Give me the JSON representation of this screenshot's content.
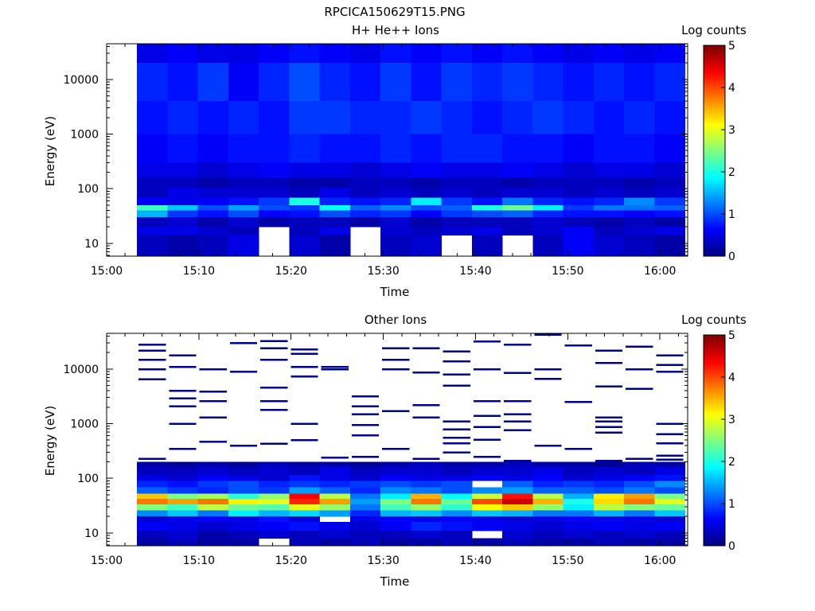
{
  "figure": {
    "title": "RPCICA150629T15.PNG"
  },
  "chart_data": [
    {
      "type": "heatmap",
      "title": "H+ He++ Ions",
      "xlabel": "Time",
      "ylabel": "Energy (eV)",
      "colorbar_label": "Log counts",
      "x_ticks": [
        "15:00",
        "15:10",
        "15:20",
        "15:30",
        "15:40",
        "15:50",
        "16:00"
      ],
      "x_range_minutes": [
        0,
        63
      ],
      "y_scale": "log",
      "y_range": [
        5.8,
        45000
      ],
      "y_ticks": [
        "10",
        "100",
        "1000",
        "10000"
      ],
      "colorbar_range": [
        0,
        5
      ],
      "colorbar_ticks": [
        "0",
        "1",
        "2",
        "3",
        "4",
        "5"
      ],
      "time_columns_minutes": [
        3.3,
        6.6,
        9.9,
        13.2,
        16.5,
        19.8,
        23.1,
        26.4,
        29.7,
        33.0,
        36.3,
        39.6,
        42.9,
        46.2,
        49.5,
        52.8,
        56.1,
        59.4,
        62.7
      ],
      "energy_bands": [
        {
          "energy_range": [
            20000,
            45000
          ],
          "log_counts": [
            0.5,
            0.6,
            0.5,
            0.5,
            0.6,
            0.7,
            0.6,
            0.5,
            0.7,
            0.6,
            0.7,
            0.6,
            0.7,
            0.6,
            0.5,
            0.6,
            0.5,
            0.6
          ]
        },
        {
          "energy_range": [
            4000,
            20000
          ],
          "log_counts": [
            0.8,
            0.7,
            0.9,
            0.6,
            0.8,
            1.0,
            0.8,
            0.7,
            0.9,
            0.7,
            0.9,
            0.8,
            0.9,
            0.8,
            0.7,
            0.8,
            0.7,
            0.8
          ]
        },
        {
          "energy_range": [
            1000,
            4000
          ],
          "log_counts": [
            0.7,
            0.8,
            0.7,
            0.8,
            0.7,
            0.9,
            0.9,
            0.8,
            0.8,
            0.9,
            0.8,
            0.7,
            0.8,
            0.9,
            0.8,
            0.7,
            0.8,
            0.7
          ]
        },
        {
          "energy_range": [
            300,
            1000
          ],
          "log_counts": [
            0.6,
            0.7,
            0.6,
            0.7,
            0.7,
            0.8,
            0.7,
            0.7,
            0.8,
            0.7,
            0.8,
            0.8,
            0.7,
            0.7,
            0.6,
            0.7,
            0.7,
            0.6
          ]
        },
        {
          "energy_range": [
            160,
            300
          ],
          "log_counts": [
            0.5,
            0.5,
            0.4,
            0.5,
            0.6,
            0.5,
            0.5,
            0.4,
            0.5,
            0.6,
            0.5,
            0.5,
            0.6,
            0.5,
            0.4,
            0.5,
            0.5,
            0.4
          ]
        },
        {
          "energy_range": [
            105,
            160
          ],
          "log_counts": [
            0.3,
            0.3,
            0.2,
            0.3,
            0.3,
            0.2,
            0.2,
            0.3,
            0.3,
            0.2,
            0.3,
            0.3,
            0.2,
            0.3,
            0.3,
            0.3,
            0.2,
            0.3
          ]
        },
        {
          "energy_range": [
            68,
            105
          ],
          "log_counts": [
            0.3,
            0.5,
            0.4,
            0.4,
            0.4,
            0.3,
            0.5,
            0.3,
            0.4,
            0.3,
            0.4,
            0.3,
            0.4,
            0.4,
            0.3,
            0.4,
            0.3,
            0.4
          ]
        },
        {
          "energy_range": [
            50,
            68
          ],
          "log_counts": [
            0.6,
            0.5,
            0.6,
            0.7,
            0.9,
            2.0,
            0.8,
            0.7,
            0.8,
            1.8,
            0.9,
            0.7,
            1.2,
            0.8,
            0.7,
            0.8,
            1.3,
            0.9
          ]
        },
        {
          "energy_range": [
            40,
            50
          ],
          "log_counts": [
            2.2,
            1.6,
            1.0,
            1.4,
            1.0,
            0.9,
            1.9,
            1.1,
            1.3,
            1.0,
            1.1,
            2.0,
            2.4,
            1.8,
            0.9,
            1.2,
            1.2,
            1.1
          ]
        },
        {
          "energy_range": [
            30,
            40
          ],
          "log_counts": [
            1.5,
            0.9,
            0.7,
            1.0,
            0.6,
            0.7,
            1.0,
            0.8,
            0.9,
            0.6,
            0.9,
            1.0,
            1.1,
            0.8,
            0.7,
            0.7,
            0.6,
            0.7
          ]
        },
        {
          "energy_range": [
            20,
            30
          ],
          "log_counts": [
            0.3,
            0.4,
            0.2,
            0.4,
            0.2,
            0.3,
            0.3,
            0.2,
            0.4,
            0.2,
            0.3,
            0.3,
            0.3,
            0.4,
            0.3,
            0.2,
            0.3,
            0.2
          ]
        },
        {
          "energy_range": [
            14,
            20
          ],
          "log_counts": [
            0.5,
            0.5,
            0.4,
            0.3,
            null,
            0.3,
            0.5,
            null,
            0.4,
            0.3,
            0.4,
            0.5,
            0.3,
            0.4,
            0.6,
            0.3,
            0.4,
            0.5
          ]
        },
        {
          "energy_range": [
            5.8,
            14
          ],
          "log_counts": [
            0.3,
            0.2,
            0.3,
            0.5,
            null,
            0.4,
            0.2,
            null,
            0.3,
            0.4,
            null,
            0.3,
            null,
            0.3,
            0.6,
            0.4,
            0.3,
            0.2
          ]
        }
      ]
    },
    {
      "type": "heatmap",
      "title": "Other Ions",
      "xlabel": "Time",
      "ylabel": "Energy (eV)",
      "colorbar_label": "Log counts",
      "x_ticks": [
        "15:00",
        "15:10",
        "15:20",
        "15:30",
        "15:40",
        "15:50",
        "16:00"
      ],
      "x_range_minutes": [
        0,
        63
      ],
      "y_scale": "log",
      "y_range": [
        5.8,
        45000
      ],
      "y_ticks": [
        "10",
        "100",
        "1000",
        "10000"
      ],
      "colorbar_range": [
        0,
        5
      ],
      "colorbar_ticks": [
        "0",
        "1",
        "2",
        "3",
        "4",
        "5"
      ],
      "time_columns_minutes": [
        3.3,
        6.6,
        9.9,
        13.2,
        16.5,
        19.8,
        23.1,
        26.4,
        29.7,
        33.0,
        36.3,
        39.6,
        42.9,
        46.2,
        49.5,
        52.8,
        56.1,
        59.4,
        62.7
      ],
      "energy_bands": [
        {
          "energy_range": [
            160,
            200
          ],
          "log_counts": [
            0.2,
            0.1,
            0.2,
            0.1,
            0.3,
            0.2,
            0.2,
            0.1,
            0.2,
            0.3,
            0.2,
            0.2,
            0.3,
            0.2,
            0.2,
            0.1,
            0.3,
            0.2
          ]
        },
        {
          "energy_range": [
            115,
            160
          ],
          "log_counts": [
            0.3,
            0.3,
            0.4,
            0.3,
            0.4,
            0.3,
            0.5,
            0.3,
            0.4,
            0.4,
            0.3,
            0.4,
            0.4,
            0.5,
            0.3,
            0.4,
            0.3,
            0.5
          ]
        },
        {
          "energy_range": [
            90,
            115
          ],
          "log_counts": [
            0.5,
            0.4,
            0.6,
            0.5,
            0.4,
            0.7,
            0.5,
            0.4,
            0.6,
            0.5,
            0.5,
            0.6,
            0.5,
            0.6,
            0.4,
            0.5,
            0.6,
            0.7
          ]
        },
        {
          "energy_range": [
            68,
            90
          ],
          "log_counts": [
            0.8,
            0.7,
            0.9,
            1.0,
            0.8,
            0.9,
            0.8,
            0.9,
            1.0,
            0.9,
            1.0,
            null,
            1.1,
            0.8,
            0.9,
            0.8,
            1.0,
            1.3
          ]
        },
        {
          "energy_range": [
            52,
            68
          ],
          "log_counts": [
            1.1,
            0.9,
            0.8,
            1.0,
            0.9,
            1.4,
            1.1,
            0.8,
            1.3,
            1.2,
            1.0,
            1.3,
            1.4,
            1.1,
            1.1,
            1.0,
            1.2,
            1.0
          ]
        },
        {
          "energy_range": [
            42,
            52
          ],
          "log_counts": [
            3.4,
            2.5,
            2.7,
            2.1,
            2.6,
            4.4,
            2.8,
            1.2,
            1.8,
            3.5,
            1.9,
            2.9,
            4.3,
            2.8,
            1.5,
            3.2,
            3.6,
            2.5
          ]
        },
        {
          "energy_range": [
            33,
            42
          ],
          "log_counts": [
            3.8,
            3.6,
            3.8,
            3.2,
            3.0,
            4.2,
            3.6,
            1.4,
            2.5,
            3.8,
            2.4,
            4.0,
            4.6,
            3.5,
            2.0,
            3.3,
            3.8,
            3.0
          ]
        },
        {
          "energy_range": [
            26,
            33
          ],
          "log_counts": [
            2.5,
            2.2,
            2.8,
            2.4,
            2.3,
            3.0,
            2.6,
            1.2,
            2.2,
            2.6,
            2.1,
            3.1,
            3.4,
            2.6,
            1.8,
            2.8,
            2.5,
            2.4
          ]
        },
        {
          "energy_range": [
            20,
            26
          ],
          "log_counts": [
            1.3,
            1.6,
            1.2,
            1.8,
            1.5,
            1.7,
            1.4,
            0.8,
            1.5,
            1.6,
            1.3,
            1.6,
            1.5,
            1.2,
            1.2,
            1.5,
            1.2,
            1.6
          ]
        },
        {
          "energy_range": [
            16,
            20
          ],
          "log_counts": [
            0.4,
            0.5,
            0.6,
            0.5,
            0.7,
            0.4,
            null,
            0.5,
            0.6,
            0.5,
            0.6,
            0.5,
            0.4,
            0.5,
            0.6,
            0.5,
            0.5,
            0.4
          ]
        },
        {
          "energy_range": [
            11,
            16
          ],
          "log_counts": [
            0.6,
            0.5,
            0.4,
            0.5,
            0.6,
            0.7,
            0.5,
            0.4,
            0.6,
            0.8,
            0.7,
            0.6,
            0.5,
            0.4,
            0.5,
            0.6,
            0.5,
            0.6
          ]
        },
        {
          "energy_range": [
            8,
            11
          ],
          "log_counts": [
            0.3,
            0.4,
            0.2,
            0.3,
            0.4,
            0.3,
            0.4,
            0.3,
            0.3,
            0.4,
            0.3,
            null,
            0.4,
            0.3,
            0.4,
            0.3,
            0.4,
            0.3
          ]
        },
        {
          "energy_range": [
            5.8,
            8
          ],
          "log_counts": [
            0.2,
            0.3,
            0.2,
            0.2,
            null,
            0.3,
            0.2,
            0.3,
            0.2,
            0.2,
            0.3,
            0.2,
            0.3,
            0.2,
            0.2,
            0.3,
            0.2,
            0.2
          ]
        }
      ],
      "sparse_events": [
        {
          "minute": 3.3,
          "energies": [
            6500,
            10000,
            15000,
            22000,
            28000,
            230
          ]
        },
        {
          "minute": 6.6,
          "energies": [
            1000,
            2100,
            2900,
            4000,
            11000,
            18000,
            350
          ]
        },
        {
          "minute": 9.9,
          "energies": [
            1300,
            2600,
            3900,
            10000,
            470
          ]
        },
        {
          "minute": 13.2,
          "energies": [
            9000,
            30000,
            400
          ]
        },
        {
          "minute": 16.5,
          "energies": [
            1800,
            2600,
            4600,
            15000,
            24000,
            33000,
            430
          ]
        },
        {
          "minute": 19.8,
          "energies": [
            1000,
            7400,
            11000,
            19000,
            23000,
            500
          ]
        },
        {
          "minute": 23.1,
          "energies": [
            10000,
            11000,
            240
          ]
        },
        {
          "minute": 26.4,
          "energies": [
            610,
            950,
            1500,
            2100,
            3200,
            250
          ]
        },
        {
          "minute": 29.7,
          "energies": [
            1700,
            10000,
            15000,
            24000,
            350
          ]
        },
        {
          "minute": 33.0,
          "energies": [
            1300,
            2200,
            8700,
            24000,
            230
          ]
        },
        {
          "minute": 36.3,
          "energies": [
            440,
            560,
            790,
            1100,
            5000,
            8000,
            14000,
            21000,
            300
          ]
        },
        {
          "minute": 39.6,
          "energies": [
            510,
            880,
            1400,
            2600,
            10000,
            32000,
            250
          ]
        },
        {
          "minute": 42.9,
          "energies": [
            760,
            1100,
            1500,
            2600,
            8600,
            28000,
            210
          ]
        },
        {
          "minute": 46.2,
          "energies": [
            6600,
            10000,
            43000,
            400
          ]
        },
        {
          "minute": 49.5,
          "energies": [
            2500,
            27000,
            350
          ]
        },
        {
          "minute": 52.8,
          "energies": [
            690,
            880,
            1100,
            1300,
            4800,
            13000,
            22000,
            210
          ]
        },
        {
          "minute": 56.1,
          "energies": [
            4400,
            10000,
            26000,
            230
          ]
        },
        {
          "minute": 59.4,
          "energies": [
            260,
            440,
            650,
            1000,
            9000,
            12000,
            18000,
            220
          ]
        }
      ]
    }
  ]
}
